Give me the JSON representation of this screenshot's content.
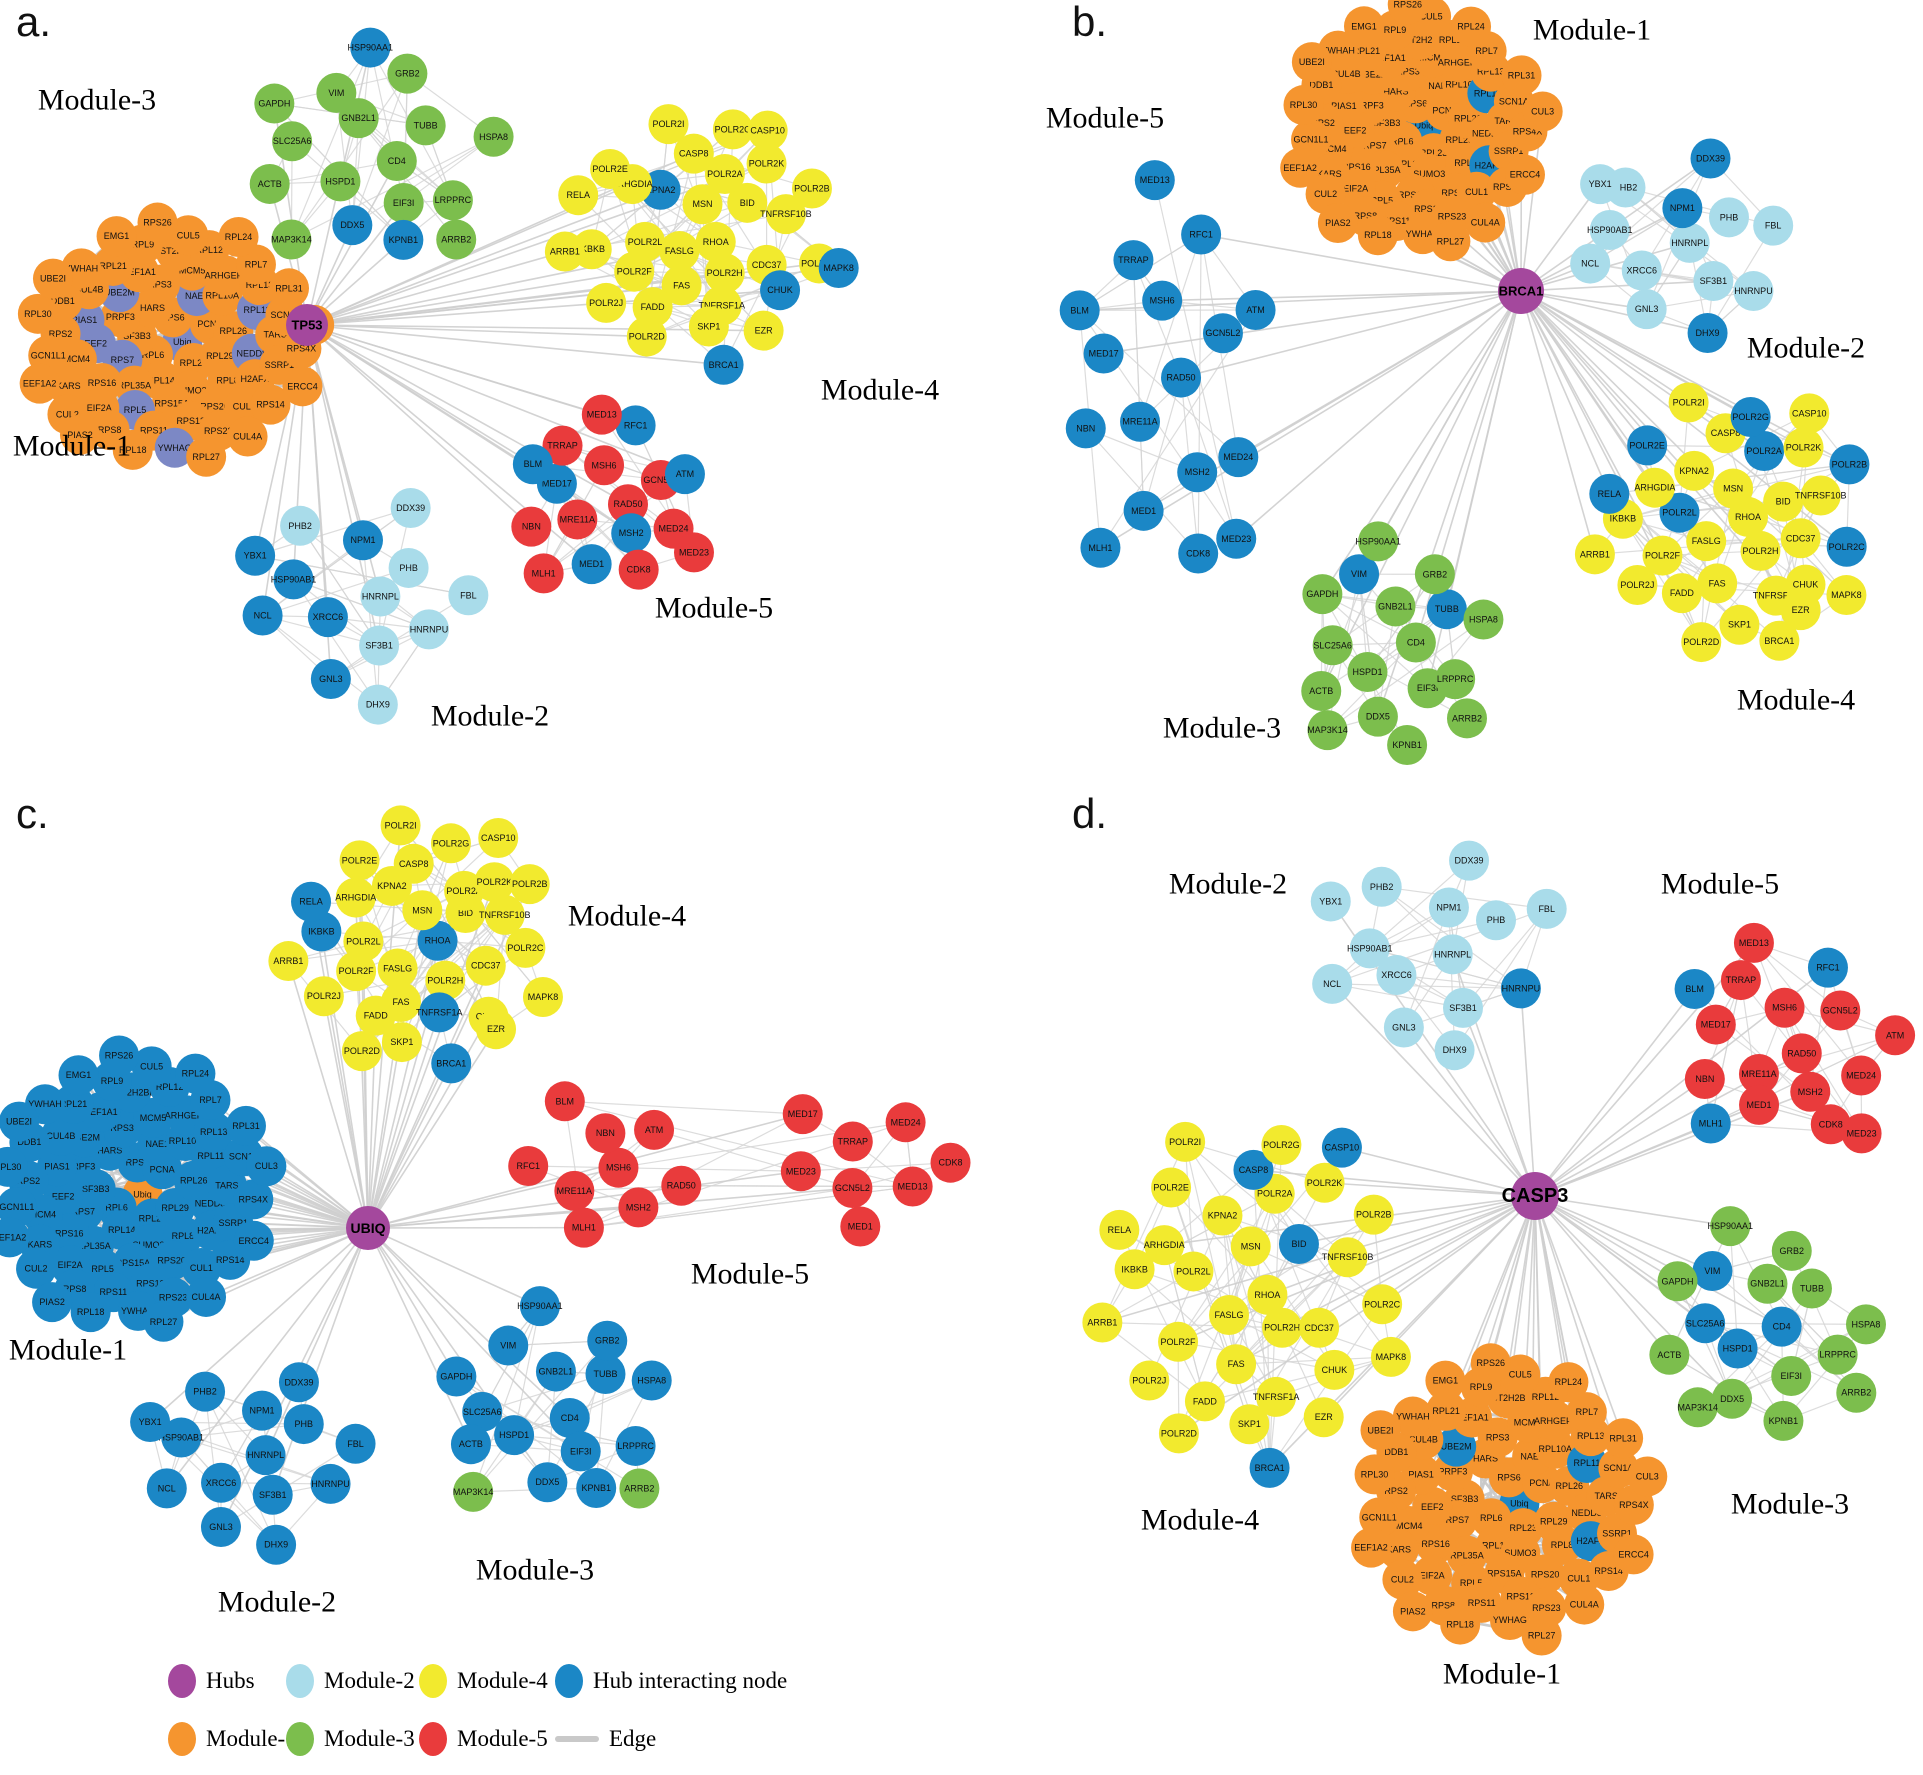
{
  "colors": {
    "hub": "#A4489D",
    "module1": "#F5952F",
    "module2": "#A9DCEA",
    "module3": "#7CBE4D",
    "module4": "#F2EA2E",
    "module5": "#E93B3C",
    "interacting": "#1B87C6",
    "slate": "#7C88C5",
    "edge": "#C9C9C9"
  },
  "node_sets": {
    "module1": [
      "Ubiq",
      "RPL6",
      "RPS6",
      "RPL23",
      "SF3B3",
      "PCNA",
      "RPL14",
      "HARS",
      "RPL29",
      "RPS7",
      "NAE1",
      "SUMO3",
      "PRPF3",
      "RPL26",
      "RPL35A",
      "RPS3",
      "RPL8",
      "EEF2",
      "RPL10A",
      "RPS15A",
      "UBE2M",
      "NEDD8",
      "RPS16",
      "MCM5",
      "RPS20",
      "PIAS1",
      "RPL11",
      "RPL5",
      "EEF1A1",
      "H2AFX",
      "MCM4",
      "ARHGEF4",
      "RPS13",
      "CUL4B",
      "TARS",
      "EIF2A",
      "HIST2H2BE",
      "CUL1",
      "RPS2",
      "RPL13",
      "RPS11",
      "RPL21",
      "SSRP1",
      "KARS",
      "RPL12",
      "RPS23",
      "DDB1",
      "SCN1A",
      "RPS8",
      "RPL9",
      "RPS14",
      "GCN1L1",
      "RPL7",
      "YWHAG",
      "YWHAH",
      "RPS4X",
      "CUL2",
      "CUL5",
      "CUL4A",
      "RPL30",
      "RPL31",
      "RPL18",
      "EMG1",
      "ERCC4",
      "EEF1A2",
      "RPL24",
      "RPL27",
      "UBE2I",
      "CUL3",
      "PIAS2",
      "RPS26"
    ],
    "module2": [
      "HNRNPL",
      "XRCC6",
      "NPM1",
      "SF3B1",
      "HSP90AB1",
      "PHB",
      "GNL3",
      "PHB2",
      "HNRNPU",
      "NCL",
      "DDX39",
      "DHX9",
      "YBX1",
      "FBL"
    ],
    "module3": [
      "CD4",
      "HSPD1",
      "GNB2L1",
      "EIF3I",
      "SLC25A6",
      "TUBB",
      "DDX5",
      "VIM",
      "LRPPRC",
      "ACTB",
      "GRB2",
      "KPNB1",
      "GAPDH",
      "HSPA8",
      "MAP3K14",
      "HSP90AA1",
      "ARRB2"
    ],
    "module4": [
      "RHOA",
      "FASLG",
      "MSN",
      "POLR2H",
      "POLR2L",
      "BID",
      "FAS",
      "KPNA2",
      "CDC37",
      "POLR2F",
      "POLR2A",
      "TNFRSF1A",
      "ARHGDIA",
      "TNFRSF10B",
      "FADD",
      "CASP8",
      "CHUK",
      "IKBKB",
      "POLR2K",
      "SKP1",
      "POLR2E",
      "POLR2C",
      "POLR2J",
      "POLR2G",
      "EZR",
      "RELA",
      "POLR2B",
      "POLR2D",
      "POLR2I",
      "MAPK8",
      "ARRB1",
      "CASP10",
      "BRCA1"
    ],
    "module5": [
      "RAD50",
      "MRE11A",
      "MSH6",
      "MSH2",
      "MED17",
      "GCN5L2",
      "MED1",
      "TRRAP",
      "MED24",
      "NBN",
      "RFC1",
      "CDK8",
      "BLM",
      "ATM",
      "MLH1",
      "MED13",
      "MED23"
    ],
    "module5_lobes": [
      "MSH6",
      "MRE11A",
      "NBN",
      "MSH2",
      "RFC1",
      "ATM",
      "MLH1",
      "BLM",
      "RAD50",
      "GCN5L2",
      "TRRAP",
      "MED13",
      "MED23",
      "MED24",
      "MED1",
      "MED17",
      "CDK8"
    ]
  },
  "panels": [
    {
      "id": "a",
      "letter": "a.",
      "hub": {
        "label": "TP53"
      },
      "modules": [
        {
          "id": "m1",
          "label": "Module-1",
          "base": "module1",
          "nodes_ref": "module1",
          "overrides": {
            "Ubiq": "slate",
            "RPL11": "slate",
            "RPL5": "slate",
            "EEF2": "slate",
            "UBE2M": "slate",
            "NEDD8": "slate",
            "PIAS1": "slate",
            "RPS7": "slate",
            "NAE1": "slate",
            "YWHAG": "slate"
          }
        },
        {
          "id": "m2",
          "label": "Module-2",
          "base": "module2",
          "nodes_ref": "module2",
          "overrides": {
            "XRCC6": "interacting",
            "NPM1": "interacting",
            "HSP90AB1": "interacting",
            "GNL3": "interacting",
            "NCL": "interacting",
            "YBX1": "interacting"
          }
        },
        {
          "id": "m3",
          "label": "Module-3",
          "base": "module3",
          "nodes_ref": "module3",
          "overrides": {
            "DDX5": "interacting",
            "KPNB1": "interacting",
            "HSP90AA1": "interacting"
          }
        },
        {
          "id": "m4",
          "label": "Module-4",
          "base": "module4",
          "nodes_ref": "module4",
          "overrides": {
            "KPNA2": "interacting",
            "CHUK": "interacting",
            "MAPK8": "interacting",
            "BRCA1": "interacting"
          }
        },
        {
          "id": "m5",
          "label": "Module-5",
          "base": "module5",
          "nodes_ref": "module5",
          "overrides": {
            "MSH2": "interacting",
            "MED17": "interacting",
            "MED1": "interacting",
            "RFC1": "interacting",
            "BLM": "interacting",
            "ATM": "interacting"
          }
        }
      ]
    },
    {
      "id": "b",
      "letter": "b.",
      "hub": {
        "label": "BRCA1"
      },
      "modules": [
        {
          "id": "m1",
          "label": "Module-1",
          "base": "module1",
          "nodes_ref": "module1",
          "overrides": {
            "H2AFX": "interacting",
            "Ubiq": "interacting",
            "RPL11": "interacting"
          }
        },
        {
          "id": "m2",
          "label": "Module-2",
          "base": "module2",
          "nodes_ref": "module2",
          "overrides": {
            "NPM1": "interacting",
            "DHX9": "interacting",
            "DDX39": "interacting"
          }
        },
        {
          "id": "m3",
          "label": "Module-3",
          "base": "module3",
          "nodes_ref": "module3",
          "overrides": {
            "TUBB": "interacting",
            "VIM": "interacting"
          }
        },
        {
          "id": "m4",
          "label": "Module-4",
          "base": "module4",
          "nodes_ref": "module4",
          "overrides": {
            "POLR2A": "interacting",
            "POLR2C": "interacting",
            "POLR2L": "interacting",
            "POLR2B": "interacting",
            "POLR2E": "interacting",
            "RELA": "interacting",
            "POLR2G": "interacting"
          }
        },
        {
          "id": "m5",
          "label": "Module-5",
          "base": "interacting",
          "nodes_ref": "module5",
          "overrides": {}
        }
      ]
    },
    {
      "id": "c",
      "letter": "c.",
      "hub": {
        "label": "UBIQ"
      },
      "modules": [
        {
          "id": "m1",
          "label": "Module-1",
          "base": "interacting",
          "nodes_ref": "module1",
          "overrides": {
            "Ubiq": "module1"
          }
        },
        {
          "id": "m2",
          "label": "Module-2",
          "base": "interacting",
          "nodes_ref": "module2",
          "overrides": {}
        },
        {
          "id": "m3",
          "label": "Module-3",
          "base": "interacting",
          "nodes_ref": "module3",
          "overrides": {
            "ARRB2": "module3",
            "MAP3K14": "module3"
          }
        },
        {
          "id": "m4",
          "label": "Module-4",
          "base": "module4",
          "nodes_ref": "module4",
          "overrides": {
            "BRCA1": "interacting",
            "IKBKB": "interacting",
            "RELA": "interacting",
            "TNFRSF1A": "interacting",
            "RHOA": "interacting"
          }
        },
        {
          "id": "m5",
          "label": "Module-5",
          "base": "module5",
          "nodes_ref": "module5_lobes",
          "overrides": {}
        }
      ]
    },
    {
      "id": "d",
      "letter": "d.",
      "hub": {
        "label": "CASP3"
      },
      "modules": [
        {
          "id": "m1",
          "label": "Module-1",
          "base": "module1",
          "nodes_ref": "module1",
          "overrides": {
            "Ubiq": "interacting",
            "H2AFX": "interacting",
            "UBE2M": "interacting",
            "RPL11": "interacting"
          }
        },
        {
          "id": "m2",
          "label": "Module-2",
          "base": "module2",
          "nodes_ref": "module2",
          "overrides": {
            "HNRNPU": "interacting"
          }
        },
        {
          "id": "m3",
          "label": "Module-3",
          "base": "module3",
          "nodes_ref": "module3",
          "overrides": {
            "VIM": "interacting",
            "SLC25A6": "interacting",
            "HSPD1": "interacting",
            "CD4": "interacting"
          }
        },
        {
          "id": "m4",
          "label": "Module-4",
          "base": "module4",
          "nodes_ref": "module4",
          "overrides": {
            "BRCA1": "interacting",
            "CASP10": "interacting",
            "CASP8": "interacting",
            "BID": "interacting"
          }
        },
        {
          "id": "m5",
          "label": "Module-5",
          "base": "module5",
          "nodes_ref": "module5",
          "overrides": {
            "RFC1": "interacting",
            "MLH1": "interacting",
            "BLM": "interacting"
          }
        }
      ]
    }
  ],
  "legend": {
    "items": [
      {
        "label": "Hubs",
        "color_key": "hub",
        "shape": "circle"
      },
      {
        "label": "Module-2",
        "color_key": "module2",
        "shape": "circle"
      },
      {
        "label": "Module-4",
        "color_key": "module4",
        "shape": "circle"
      },
      {
        "label": "Hub interacting node",
        "color_key": "interacting",
        "shape": "circle"
      },
      {
        "label": "Module-1",
        "color_key": "module1",
        "shape": "circle"
      },
      {
        "label": "Module-3",
        "color_key": "module3",
        "shape": "circle"
      },
      {
        "label": "Module-5",
        "color_key": "module5",
        "shape": "circle"
      },
      {
        "label": "Edge",
        "color_key": "edge",
        "shape": "line"
      }
    ]
  }
}
